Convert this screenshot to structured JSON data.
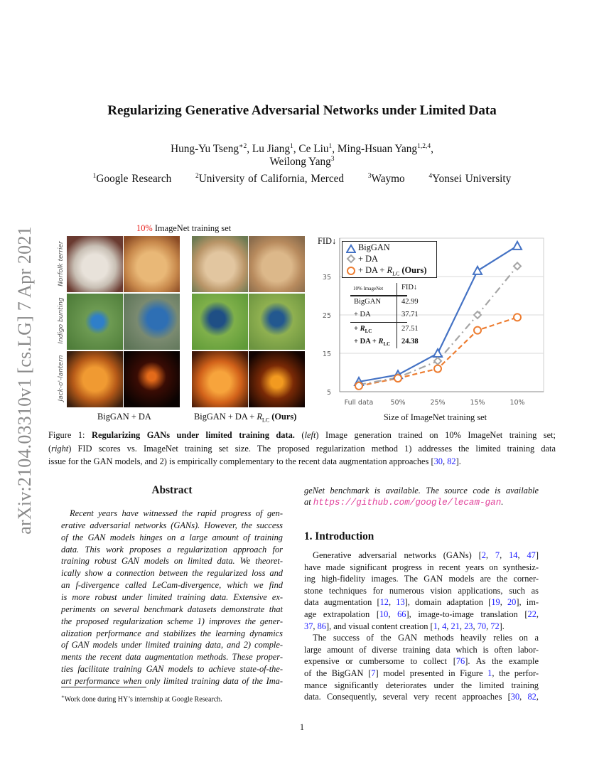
{
  "arxiv_id": "arXiv:2104.03310v1  [cs.LG]  7 Apr 2021",
  "title": "Regularizing Generative Adversarial Networks under Limited Data",
  "authors": {
    "line1": [
      {
        "name": "Hung-Yu Tseng",
        "sup": "∗2"
      },
      {
        "name": "Lu Jiang",
        "sup": "1"
      },
      {
        "name": "Ce Liu",
        "sup": "1"
      },
      {
        "name": "Ming-Hsuan Yang",
        "sup": "1,2,4"
      }
    ],
    "line2": {
      "name": "Weilong Yang",
      "sup": "3"
    },
    "affiliations": [
      {
        "sup": "1",
        "name": "Google Research"
      },
      {
        "sup": "2",
        "name": "University of California, Merced"
      },
      {
        "sup": "3",
        "name": "Waymo"
      },
      {
        "sup": "4",
        "name": "Yonsei University"
      }
    ]
  },
  "figure": {
    "left_title_highlight": "10%",
    "left_title_rest": " ImageNet training set",
    "row_labels": [
      "Norfolk terrier",
      "Indigo bunting",
      "Jack-o'-lantern"
    ],
    "group_labels": {
      "baseline": "BigGAN + DA",
      "ours_prefix": "BigGAN + DA + ",
      "ours_r": "R",
      "ours_sub": "LC",
      "ours_suffix": "(Ours)"
    },
    "highlight_color": "#e8201c"
  },
  "chart_data": {
    "type": "line",
    "ylabel": "FID↓",
    "xlabel": "Size of ImageNet training set",
    "categories": [
      "Full data",
      "50%",
      "25%",
      "15%",
      "10%"
    ],
    "yticks": [
      5,
      15,
      25,
      35
    ],
    "ylim": [
      5,
      45
    ],
    "grid": true,
    "legend_position": "top-left",
    "series": [
      {
        "name": "BigGAN",
        "marker": "triangle",
        "style": "solid",
        "color": "#4472c4",
        "values": [
          7.6,
          9.4,
          15.0,
          36.5,
          42.99
        ]
      },
      {
        "name": "+ DA",
        "marker": "diamond",
        "style": "dash-dot",
        "color": "#a5a5a5",
        "values": [
          6.8,
          8.7,
          13.0,
          25.0,
          37.71
        ]
      },
      {
        "name": "+ DA + R_LC (Ours)",
        "marker": "circle",
        "style": "dashed",
        "color": "#ed7d31",
        "values": [
          6.5,
          8.5,
          11.0,
          21.0,
          24.38
        ]
      }
    ],
    "legend_labels": {
      "biggan": "BigGAN",
      "da": "+ DA",
      "ours_prefix": "+ DA + ",
      "ours_r": "R",
      "ours_sub": "LC",
      "ours_suffix": "(Ours)"
    },
    "inset_table": {
      "header": [
        "10% ImageNet",
        "FID↓"
      ],
      "rows": [
        {
          "method": "BigGAN",
          "fid": "42.99"
        },
        {
          "method": "+ DA",
          "fid": "37.71"
        },
        {
          "method": "+ R_LC",
          "fid": "27.51"
        },
        {
          "method": "+ DA + R_LC",
          "fid": "24.38"
        }
      ]
    }
  },
  "caption": {
    "label": "Figure 1: ",
    "bold": "Regularizing GANs under limited training data.",
    "left": "left",
    "line1_rest": " Image generation trained on 10% ImageNet training set;",
    "right": "right",
    "line2_rest": " FID scores vs. ImageNet training set size. The proposed regularization method 1) addresses the limited training data",
    "line3": "issue for the GAN models, and 2) is empirically complementary to the recent data augmentation approaches [30, 82]."
  },
  "abstract": {
    "heading": "Abstract",
    "lines": [
      "Recent years have witnessed the rapid progress of gen-",
      "erative adversarial networks (GANs). However, the success",
      "of the GAN models hinges on a large amount of training",
      "data. This work proposes a regularization approach for",
      "training robust GAN models on limited data. We theoret-",
      "ically show a connection between the regularized loss and",
      "an f-divergence called LeCam-divergence, which we find",
      "is more robust under limited training data. Extensive ex-",
      "periments on several benchmark datasets demonstrate that",
      "the proposed regularization scheme 1) improves the gener-",
      "alization performance and stabilizes the learning dynamics",
      "of GAN models under limited training data, and 2) comple-",
      "ments the recent data augmentation methods. These proper-",
      "ties facilitate training GAN models to achieve state-of-the-",
      "art performance when only limited training data of the Ima-"
    ],
    "cont_line": "geNet benchmark is available. The source code is available",
    "at": "at ",
    "url": "https://github.com/google/lecam-gan",
    "end": "."
  },
  "intro": {
    "heading": "1. Introduction",
    "lines": [
      "Generative adversarial networks (GANs) [2, 7, 14, 47]",
      "have made significant progress in recent years on synthesiz-",
      "ing high-fidelity images. The GAN models are the corner-",
      "stone techniques for numerous vision applications, such as",
      "data augmentation [12, 13], domain adaptation [19, 20], im-",
      "age extrapolation [10, 66], image-to-image translation [22,",
      "37, 86], and visual content creation [1, 4, 21, 23, 70, 72].",
      "The success of the GAN methods heavily relies on a",
      "large amount of diverse training data which is often labor-",
      "expensive or cumbersome to collect [76]. As the example",
      "of the BigGAN [7] model presented in Figure 1, the perfor-",
      "mance significantly deteriorates under the limited training",
      "data. Consequently, several very recent approaches [30, 82,"
    ]
  },
  "footnote": {
    "mark": "∗",
    "text": "Work done during HY’s internship at Google Research."
  },
  "page_number": "1"
}
